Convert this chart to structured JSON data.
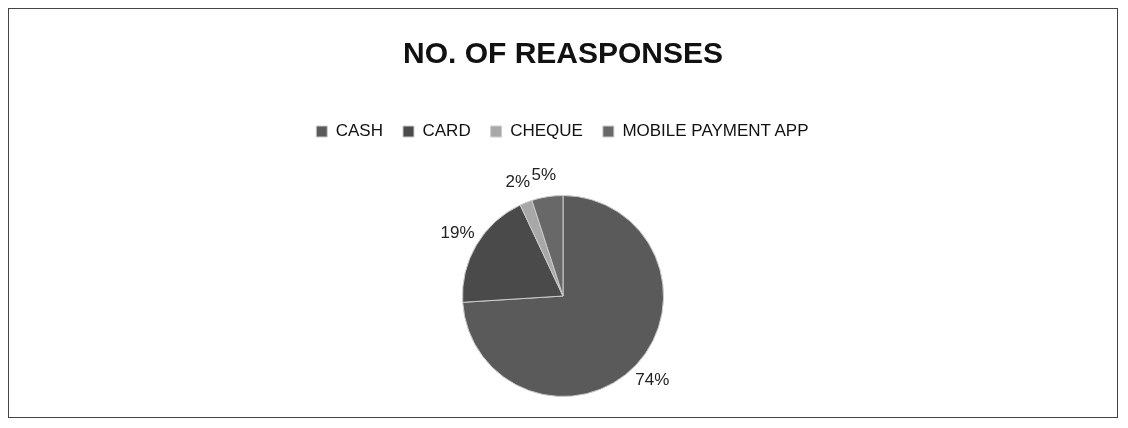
{
  "chart_data": {
    "type": "pie",
    "title": "NO. OF REASPONSES",
    "categories": [
      "CASH",
      "CARD",
      "CHEQUE",
      "MOBILE PAYMENT APP"
    ],
    "values": [
      74,
      19,
      2,
      5
    ],
    "value_labels": [
      "74%",
      "19%",
      "2%",
      "5%"
    ],
    "colors": [
      "#5a5a5a",
      "#4a4a4a",
      "#a8a8a8",
      "#686868"
    ],
    "legend": "top"
  }
}
